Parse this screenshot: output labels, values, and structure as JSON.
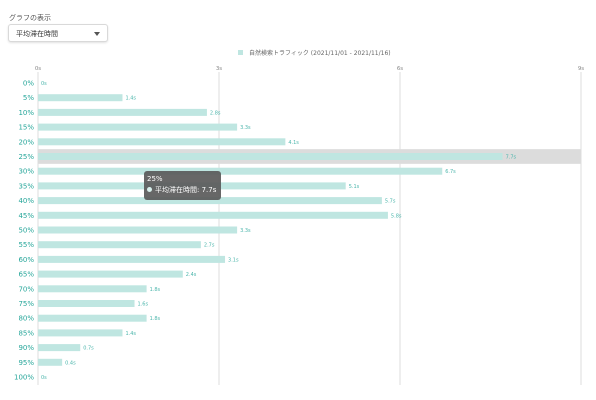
{
  "controls": {
    "graph_label": "グラフの表示",
    "metric_selected": "平均滞在時間"
  },
  "legend": {
    "series_name": "自然検索トラフィック (2021/11/01 - 2021/11/16)"
  },
  "colors": {
    "bar": "#bfe6e1",
    "highlight_band": "#dcdcdc",
    "category_label": "#26a69a",
    "bar_label": "#4db6ac",
    "grid": "#dddddd"
  },
  "tooltip": {
    "title": "25%",
    "metric": "平均滞在時間",
    "value": "7.7s"
  },
  "chart_data": {
    "type": "bar",
    "orientation": "horizontal",
    "categories": [
      "0%",
      "5%",
      "10%",
      "15%",
      "20%",
      "25%",
      "30%",
      "35%",
      "40%",
      "45%",
      "50%",
      "55%",
      "60%",
      "65%",
      "70%",
      "75%",
      "80%",
      "85%",
      "90%",
      "95%",
      "100%"
    ],
    "series": [
      {
        "name": "自然検索トラフィック (2021/11/01 - 2021/11/16)",
        "values": [
          0,
          1.4,
          2.8,
          3.3,
          4.1,
          7.7,
          6.7,
          5.1,
          5.7,
          5.8,
          3.3,
          2.7,
          3.1,
          2.4,
          1.8,
          1.6,
          1.8,
          1.4,
          0.7,
          0.4,
          0
        ],
        "labels": [
          "0s",
          "1.4s",
          "2.8s",
          "3.3s",
          "4.1s",
          "7.7s",
          "6.7s",
          "5.1s",
          "5.7s",
          "5.8s",
          "3.3s",
          "2.7s",
          "3.1s",
          "2.4s",
          "1.8s",
          "1.6s",
          "1.8s",
          "1.4s",
          "0.7s",
          "0.4s",
          "0s"
        ]
      }
    ],
    "xlim": [
      0,
      9
    ],
    "xticks": [
      0,
      3,
      6,
      9
    ],
    "xtick_labels": [
      "0s",
      "3s",
      "6s",
      "9s"
    ],
    "highlighted_category": "25%",
    "grid": true,
    "legend_position": "top"
  }
}
